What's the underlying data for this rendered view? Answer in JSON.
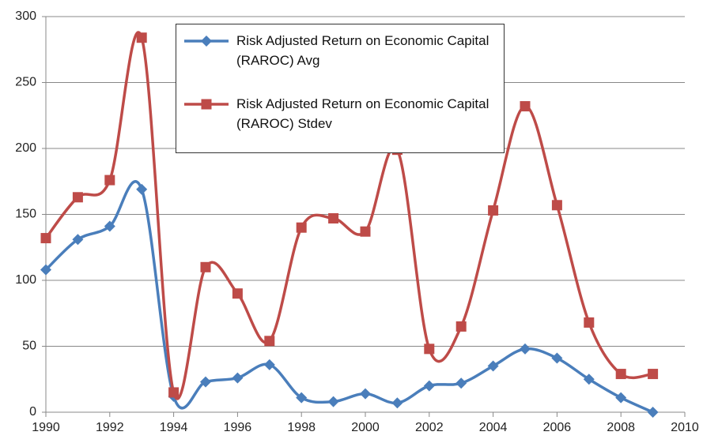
{
  "chart_data": {
    "type": "line",
    "x": [
      1990,
      1991,
      1992,
      1993,
      1994,
      1995,
      1996,
      1997,
      1998,
      1999,
      2000,
      2001,
      2002,
      2003,
      2004,
      2005,
      2006,
      2007,
      2008,
      2009
    ],
    "series": [
      {
        "name": "Risk Adjusted Return on Economic Capital (RAROC) Avg",
        "color": "#4a7ebb",
        "marker": "diamond",
        "values": [
          108,
          131,
          141,
          169,
          12,
          23,
          26,
          36,
          11,
          8,
          14,
          7,
          20,
          22,
          35,
          48,
          41,
          25,
          11,
          0
        ]
      },
      {
        "name": "Risk Adjusted Return on Economic Capital (RAROC) Stdev",
        "color": "#be4b48",
        "marker": "square",
        "values": [
          132,
          163,
          176,
          284,
          15,
          110,
          90,
          54,
          140,
          147,
          137,
          199,
          48,
          65,
          153,
          232,
          157,
          68,
          29,
          29
        ]
      }
    ],
    "xlim": [
      1990,
      2010
    ],
    "xticks": [
      1990,
      1992,
      1994,
      1996,
      1998,
      2000,
      2002,
      2004,
      2006,
      2008,
      2010
    ],
    "ylim": [
      0,
      300
    ],
    "yticks": [
      0,
      50,
      100,
      150,
      200,
      250,
      300
    ],
    "grid": true,
    "smooth": true
  }
}
